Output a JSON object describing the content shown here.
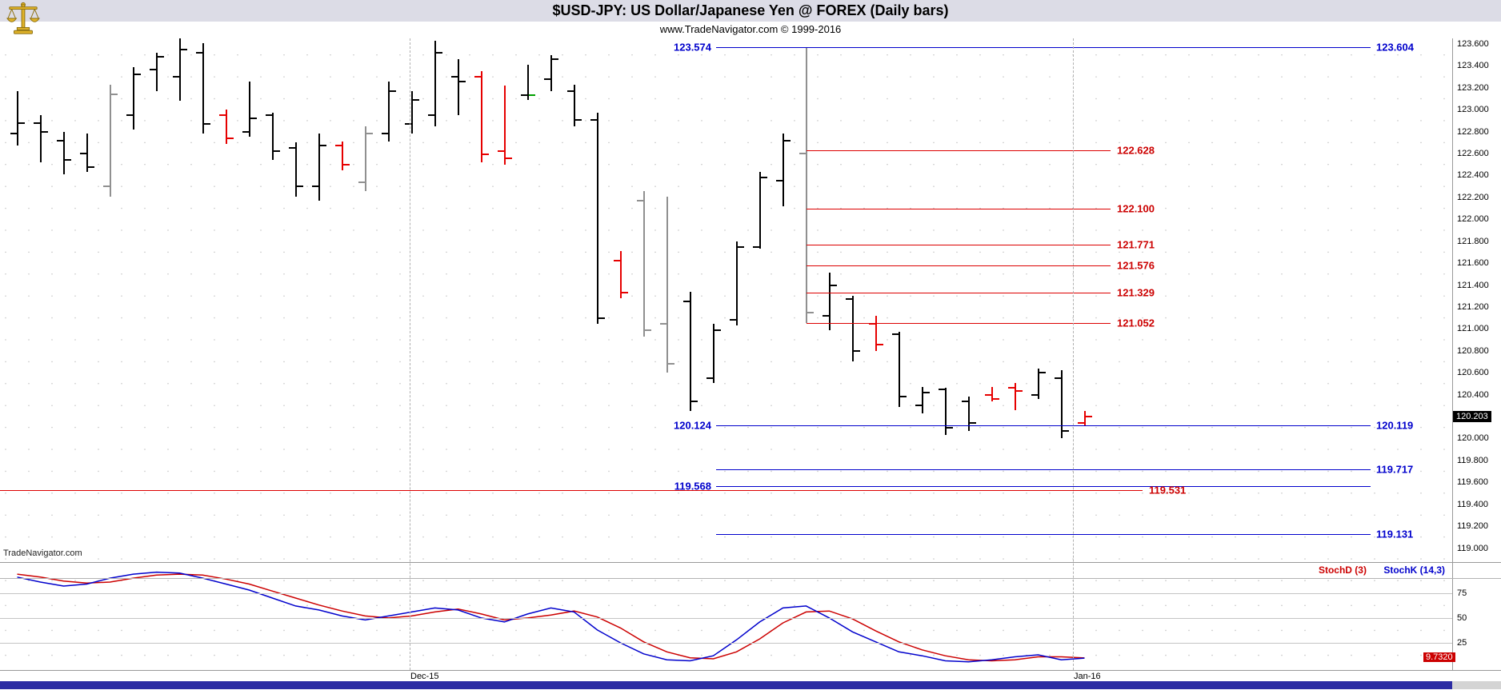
{
  "header": {
    "title": "$USD-JPY:  US Dollar/Japanese Yen @ FOREX  (Daily bars)",
    "subtitle": "www.TradeNavigator.com © 1999-2016",
    "logo_icon": "scales-icon"
  },
  "watermark": "TradeNavigator.com",
  "colors": {
    "blue_level": "#0000cc",
    "red_level": "#dd0000",
    "bar_up": "#000000",
    "bar_down": "#e60000",
    "bar_neutral": "#909090",
    "green_close": "#00a000",
    "stoch_d": "#cc0000",
    "stoch_k": "#0000cc",
    "scrollbar": "#2b2ba3"
  },
  "price_axis": {
    "labels": [
      "123.600",
      "123.400",
      "123.200",
      "123.000",
      "122.800",
      "122.600",
      "122.400",
      "122.200",
      "122.000",
      "121.800",
      "121.600",
      "121.400",
      "121.200",
      "121.000",
      "120.800",
      "120.600",
      "120.400",
      "120.200",
      "120.000",
      "119.800",
      "119.600",
      "119.400",
      "119.200",
      "119.000"
    ],
    "last_price": "120.203"
  },
  "x_axis": {
    "labels": [
      "Dec-15",
      "Jan-16"
    ]
  },
  "chart_data": [
    {
      "type": "ohlc-bar",
      "title": "$USD-JPY Daily bars",
      "ylim": [
        119.0,
        123.6
      ],
      "y_tick_step": 0.2,
      "bar_format": [
        "color(k=black,r=red,g=gray,kg=black-with-green-close)",
        "open",
        "high",
        "low",
        "close"
      ],
      "bars": [
        [
          "k",
          122.78,
          123.17,
          122.67,
          122.88
        ],
        [
          "k",
          122.88,
          122.95,
          122.52,
          122.8
        ],
        [
          "k",
          122.72,
          122.8,
          122.41,
          122.54
        ],
        [
          "k",
          122.6,
          122.78,
          122.43,
          122.48
        ],
        [
          "g",
          122.3,
          123.23,
          122.21,
          123.14
        ],
        [
          "k",
          122.95,
          123.39,
          122.82,
          123.32
        ],
        [
          "k",
          123.37,
          123.52,
          123.17,
          123.48
        ],
        [
          "k",
          123.3,
          123.67,
          123.08,
          123.55
        ],
        [
          "k",
          123.52,
          123.61,
          122.78,
          122.87
        ],
        [
          "r",
          122.95,
          123.0,
          122.69,
          122.74
        ],
        [
          "k",
          122.8,
          123.26,
          122.75,
          122.92
        ],
        [
          "k",
          122.95,
          122.97,
          122.54,
          122.62
        ],
        [
          "k",
          122.65,
          122.7,
          122.21,
          122.3
        ],
        [
          "k",
          122.3,
          122.78,
          122.17,
          122.67
        ],
        [
          "r",
          122.67,
          122.71,
          122.45,
          122.5
        ],
        [
          "g",
          122.34,
          122.85,
          122.26,
          122.78
        ],
        [
          "k",
          122.78,
          123.26,
          122.71,
          123.17
        ],
        [
          "k",
          122.87,
          123.17,
          122.78,
          123.09
        ],
        [
          "k",
          122.95,
          123.63,
          122.85,
          123.52
        ],
        [
          "k",
          123.3,
          123.46,
          122.95,
          123.26
        ],
        [
          "r",
          123.3,
          123.35,
          122.52,
          122.59
        ],
        [
          "r",
          122.62,
          123.22,
          122.5,
          122.56
        ],
        [
          "kg",
          123.13,
          123.41,
          123.09,
          123.13
        ],
        [
          "k",
          123.28,
          123.5,
          123.17,
          123.46
        ],
        [
          "k",
          123.17,
          123.23,
          122.85,
          122.91
        ],
        [
          "k",
          122.91,
          122.97,
          121.05,
          121.1
        ],
        [
          "r",
          121.62,
          121.71,
          121.28,
          121.33
        ],
        [
          "g",
          122.17,
          122.26,
          120.93,
          120.99
        ],
        [
          "g",
          121.05,
          122.21,
          120.6,
          120.68
        ],
        [
          "k",
          121.25,
          121.34,
          120.25,
          120.34
        ],
        [
          "k",
          120.55,
          121.05,
          120.51,
          120.99
        ],
        [
          "k",
          121.08,
          121.8,
          121.03,
          121.75
        ],
        [
          "k",
          121.75,
          122.43,
          121.73,
          122.38
        ],
        [
          "k",
          122.35,
          122.78,
          122.12,
          122.72
        ],
        [
          "g",
          122.6,
          123.574,
          121.052,
          121.15
        ],
        [
          "k",
          121.12,
          121.51,
          120.99,
          121.4
        ],
        [
          "k",
          121.27,
          121.3,
          120.7,
          120.8
        ],
        [
          "r",
          121.05,
          121.12,
          120.8,
          120.86
        ],
        [
          "k",
          120.95,
          120.97,
          120.29,
          120.38
        ],
        [
          "k",
          120.3,
          120.47,
          120.23,
          120.42
        ],
        [
          "k",
          120.45,
          120.46,
          120.03,
          120.1
        ],
        [
          "k",
          120.34,
          120.38,
          120.07,
          120.14
        ],
        [
          "r",
          120.4,
          120.47,
          120.34,
          120.36
        ],
        [
          "r",
          120.46,
          120.51,
          120.26,
          120.43
        ],
        [
          "k",
          120.4,
          120.64,
          120.36,
          120.6
        ],
        [
          "k",
          120.55,
          120.62,
          120.0,
          120.07
        ],
        [
          "r",
          120.14,
          120.25,
          120.12,
          120.203
        ]
      ],
      "levels": {
        "blue": [
          {
            "price": 123.574,
            "left_label": "123.574",
            "right_label": "123.604",
            "span": "standard"
          },
          {
            "price": 120.121,
            "left_label": "120.124",
            "right_label": "120.119",
            "span": "standard"
          },
          {
            "price": 119.717,
            "right_label": "119.717",
            "span": "standard"
          },
          {
            "price": 119.568,
            "left_label": "119.568",
            "span": "standard"
          },
          {
            "price": 119.131,
            "right_label": "119.131",
            "span": "standard"
          }
        ],
        "red": [
          {
            "price": 122.628,
            "label": "122.628",
            "span": "fib"
          },
          {
            "price": 122.1,
            "label": "122.100",
            "span": "fib"
          },
          {
            "price": 121.771,
            "label": "121.771",
            "span": "fib"
          },
          {
            "price": 121.576,
            "label": "121.576",
            "span": "fib"
          },
          {
            "price": 121.329,
            "label": "121.329",
            "span": "fib"
          },
          {
            "price": 121.052,
            "label": "121.052",
            "span": "fib"
          },
          {
            "price": 119.531,
            "label": "119.531",
            "span": "full"
          }
        ]
      }
    },
    {
      "type": "line",
      "title": "Stochastic",
      "ylim": [
        0,
        100
      ],
      "yticks": [
        75,
        50,
        25
      ],
      "series": [
        {
          "name": "StochD (3)",
          "color": "#cc0000",
          "values": [
            94,
            91,
            87,
            85,
            86,
            90,
            93,
            94,
            93,
            89,
            84,
            77,
            70,
            63,
            57,
            52,
            50,
            52,
            56,
            59,
            54,
            48,
            50,
            53,
            57,
            51,
            40,
            26,
            16,
            10,
            9,
            16,
            29,
            45,
            56,
            57,
            49,
            37,
            26,
            18,
            12,
            8,
            7,
            8,
            11,
            11,
            9.9
          ]
        },
        {
          "name": "StochK (14,3)",
          "color": "#0000cc",
          "values": [
            91,
            86,
            82,
            84,
            90,
            94,
            96,
            95,
            90,
            84,
            78,
            70,
            62,
            58,
            52,
            48,
            52,
            56,
            60,
            58,
            50,
            46,
            54,
            60,
            56,
            38,
            25,
            14,
            8,
            7,
            12,
            28,
            46,
            60,
            62,
            50,
            36,
            26,
            16,
            12,
            7,
            6,
            8,
            11,
            13,
            8,
            9.73
          ]
        }
      ],
      "last_value": "9.7320"
    }
  ]
}
